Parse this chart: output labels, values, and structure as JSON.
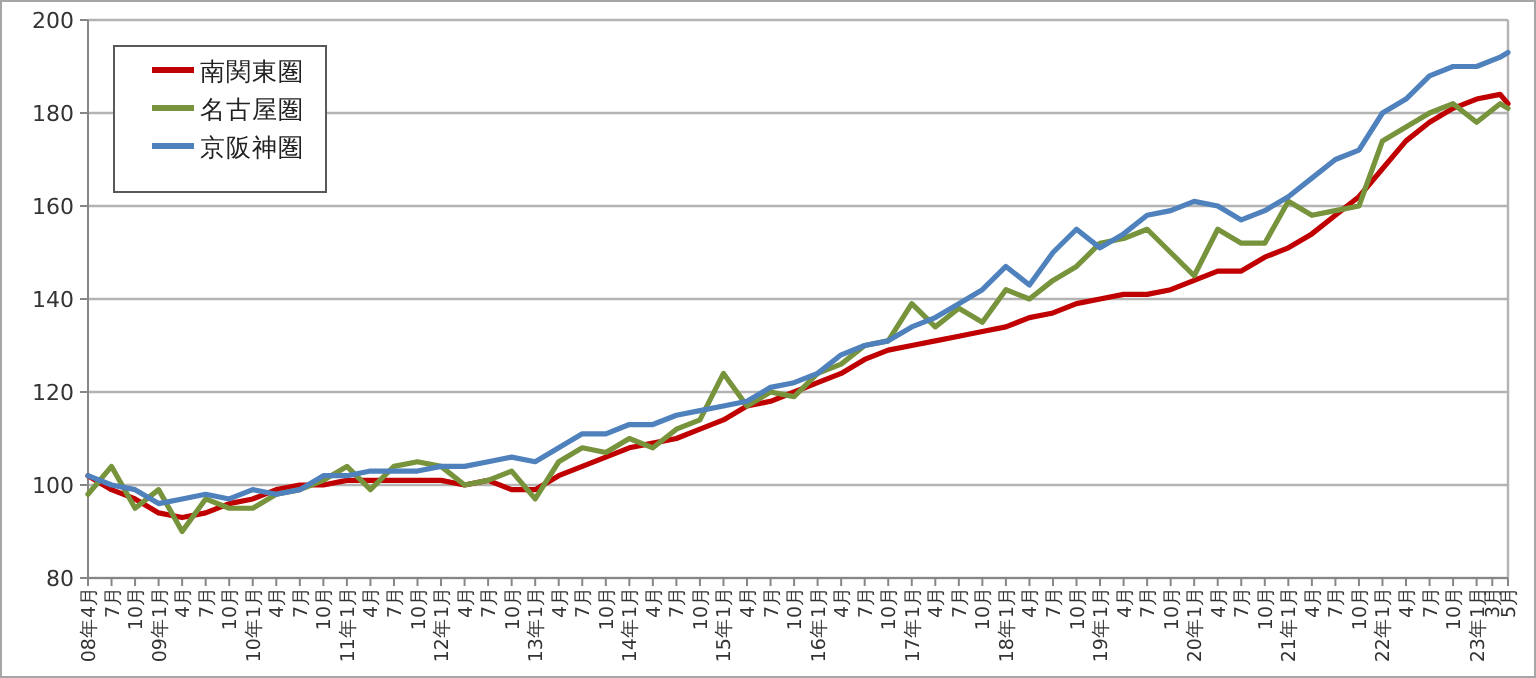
{
  "chart_data": {
    "type": "line",
    "x": [
      "2008-04",
      "2008-07",
      "2008-10",
      "2009-01",
      "2009-04",
      "2009-07",
      "2009-10",
      "2010-01",
      "2010-04",
      "2010-07",
      "2010-10",
      "2011-01",
      "2011-04",
      "2011-07",
      "2011-10",
      "2012-01",
      "2012-04",
      "2012-07",
      "2012-10",
      "2013-01",
      "2013-04",
      "2013-07",
      "2013-10",
      "2014-01",
      "2014-04",
      "2014-07",
      "2014-10",
      "2015-01",
      "2015-04",
      "2015-07",
      "2015-10",
      "2016-01",
      "2016-04",
      "2016-07",
      "2016-10",
      "2017-01",
      "2017-04",
      "2017-07",
      "2017-10",
      "2018-01",
      "2018-04",
      "2018-07",
      "2018-10",
      "2019-01",
      "2019-04",
      "2019-07",
      "2019-10",
      "2020-01",
      "2020-04",
      "2020-07",
      "2020-10",
      "2021-01",
      "2021-04",
      "2021-07",
      "2021-10",
      "2022-01",
      "2022-04",
      "2022-07",
      "2022-10",
      "2023-01",
      "2023-04",
      "2023-05"
    ],
    "series": [
      {
        "name": "南関東圏",
        "color": "#c00000",
        "values": [
          102,
          99,
          97,
          94,
          93,
          94,
          96,
          97,
          99,
          100,
          100,
          101,
          101,
          101,
          101,
          101,
          100,
          101,
          99,
          99,
          102,
          104,
          106,
          108,
          109,
          110,
          112,
          114,
          117,
          118,
          120,
          122,
          124,
          127,
          129,
          130,
          131,
          132,
          133,
          134,
          136,
          137,
          139,
          140,
          141,
          141,
          142,
          144,
          146,
          146,
          149,
          151,
          154,
          158,
          162,
          168,
          174,
          178,
          181,
          183,
          184,
          182
        ]
      },
      {
        "name": "名古屋圏",
        "color": "#77933c",
        "values": [
          98,
          104,
          95,
          99,
          90,
          97,
          95,
          95,
          98,
          99,
          101,
          104,
          99,
          104,
          105,
          104,
          100,
          101,
          103,
          97,
          105,
          108,
          107,
          110,
          108,
          112,
          114,
          124,
          117,
          120,
          119,
          124,
          126,
          130,
          131,
          139,
          134,
          138,
          135,
          142,
          140,
          144,
          147,
          152,
          153,
          155,
          150,
          145,
          155,
          152,
          152,
          161,
          158,
          159,
          160,
          174,
          177,
          180,
          182,
          178,
          182,
          181
        ]
      },
      {
        "name": "京阪神圏",
        "color": "#4f81bd",
        "values": [
          102,
          100,
          99,
          96,
          97,
          98,
          97,
          99,
          98,
          99,
          102,
          102,
          103,
          103,
          103,
          104,
          104,
          105,
          106,
          105,
          108,
          111,
          111,
          113,
          113,
          115,
          116,
          117,
          118,
          121,
          122,
          124,
          128,
          130,
          131,
          134,
          136,
          139,
          142,
          147,
          143,
          150,
          155,
          151,
          154,
          158,
          159,
          161,
          160,
          157,
          159,
          162,
          166,
          170,
          172,
          180,
          183,
          188,
          190,
          190,
          192,
          193
        ]
      }
    ],
    "xlim": [
      "2008-04",
      "2023-05"
    ],
    "xticks": [
      {
        "value": "2008-04",
        "label": "08年4月"
      },
      {
        "value": "2008-07",
        "label": "7月"
      },
      {
        "value": "2008-10",
        "label": "10月"
      },
      {
        "value": "2009-01",
        "label": "09年1月"
      },
      {
        "value": "2009-04",
        "label": "4月"
      },
      {
        "value": "2009-07",
        "label": "7月"
      },
      {
        "value": "2009-10",
        "label": "10月"
      },
      {
        "value": "2010-01",
        "label": "10年1月"
      },
      {
        "value": "2010-04",
        "label": "4月"
      },
      {
        "value": "2010-07",
        "label": "7月"
      },
      {
        "value": "2010-10",
        "label": "10月"
      },
      {
        "value": "2011-01",
        "label": "11年1月"
      },
      {
        "value": "2011-04",
        "label": "4月"
      },
      {
        "value": "2011-07",
        "label": "7月"
      },
      {
        "value": "2011-10",
        "label": "10月"
      },
      {
        "value": "2012-01",
        "label": "12年1月"
      },
      {
        "value": "2012-04",
        "label": "4月"
      },
      {
        "value": "2012-07",
        "label": "7月"
      },
      {
        "value": "2012-10",
        "label": "10月"
      },
      {
        "value": "2013-01",
        "label": "13年1月"
      },
      {
        "value": "2013-04",
        "label": "4月"
      },
      {
        "value": "2013-07",
        "label": "7月"
      },
      {
        "value": "2013-10",
        "label": "10月"
      },
      {
        "value": "2014-01",
        "label": "14年1月"
      },
      {
        "value": "2014-04",
        "label": "4月"
      },
      {
        "value": "2014-07",
        "label": "7月"
      },
      {
        "value": "2014-10",
        "label": "10月"
      },
      {
        "value": "2015-01",
        "label": "15年1月"
      },
      {
        "value": "2015-04",
        "label": "4月"
      },
      {
        "value": "2015-07",
        "label": "7月"
      },
      {
        "value": "2015-10",
        "label": "10月"
      },
      {
        "value": "2016-01",
        "label": "16年1月"
      },
      {
        "value": "2016-04",
        "label": "4月"
      },
      {
        "value": "2016-07",
        "label": "7月"
      },
      {
        "value": "2016-10",
        "label": "10月"
      },
      {
        "value": "2017-01",
        "label": "17年1月"
      },
      {
        "value": "2017-04",
        "label": "4月"
      },
      {
        "value": "2017-07",
        "label": "7月"
      },
      {
        "value": "2017-10",
        "label": "10月"
      },
      {
        "value": "2018-01",
        "label": "18年1月"
      },
      {
        "value": "2018-04",
        "label": "4月"
      },
      {
        "value": "2018-07",
        "label": "7月"
      },
      {
        "value": "2018-10",
        "label": "10月"
      },
      {
        "value": "2019-01",
        "label": "19年1月"
      },
      {
        "value": "2019-04",
        "label": "4月"
      },
      {
        "value": "2019-07",
        "label": "7月"
      },
      {
        "value": "2019-10",
        "label": "10月"
      },
      {
        "value": "2020-01",
        "label": "20年1月"
      },
      {
        "value": "2020-04",
        "label": "4月"
      },
      {
        "value": "2020-07",
        "label": "7月"
      },
      {
        "value": "2020-10",
        "label": "10月"
      },
      {
        "value": "2021-01",
        "label": "21年1月"
      },
      {
        "value": "2021-04",
        "label": "4月"
      },
      {
        "value": "2021-07",
        "label": "7月"
      },
      {
        "value": "2021-10",
        "label": "10月"
      },
      {
        "value": "2022-01",
        "label": "22年1月"
      },
      {
        "value": "2022-04",
        "label": "4月"
      },
      {
        "value": "2022-07",
        "label": "7月"
      },
      {
        "value": "2022-10",
        "label": "10月"
      },
      {
        "value": "2023-01",
        "label": "23年1月"
      },
      {
        "value": "2023-03",
        "label": "3月"
      },
      {
        "value": "2023-05",
        "label": "5月"
      }
    ],
    "ylim": [
      80,
      200
    ],
    "yticks": [
      80,
      100,
      120,
      140,
      160,
      180,
      200
    ],
    "grid": "y",
    "legend": "top left",
    "line_style": "solid"
  }
}
